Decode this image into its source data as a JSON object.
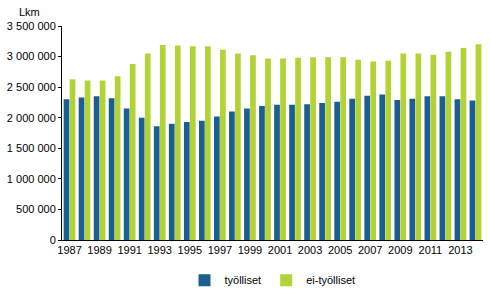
{
  "chart_data": {
    "type": "bar",
    "y_label": "Lkm",
    "categories": [
      "1987",
      null,
      "1989",
      null,
      "1991",
      null,
      "1993",
      null,
      "1995",
      null,
      "1997",
      null,
      "1999",
      null,
      "2001",
      null,
      "2003",
      null,
      "2005",
      null,
      "2007",
      null,
      "2009",
      null,
      "2011",
      null,
      "2013",
      null
    ],
    "series": [
      {
        "name": "työlliset",
        "color": "#1b5e8f",
        "values": [
          2300000,
          2330000,
          2350000,
          2320000,
          2150000,
          2000000,
          1860000,
          1900000,
          1930000,
          1950000,
          2020000,
          2100000,
          2150000,
          2190000,
          2210000,
          2210000,
          2220000,
          2240000,
          2260000,
          2310000,
          2360000,
          2380000,
          2290000,
          2310000,
          2350000,
          2350000,
          2300000,
          2280000
        ]
      },
      {
        "name": "ei-työlliset",
        "color": "#b3d235",
        "values": [
          2630000,
          2610000,
          2610000,
          2680000,
          2880000,
          3050000,
          3190000,
          3180000,
          3170000,
          3170000,
          3110000,
          3050000,
          3020000,
          2970000,
          2970000,
          2980000,
          2990000,
          2990000,
          2990000,
          2950000,
          2920000,
          2930000,
          3050000,
          3050000,
          3030000,
          3080000,
          3140000,
          3200000
        ]
      }
    ],
    "ylim": [
      0,
      3500000
    ],
    "yticks": [
      0,
      {
        "value": 500000,
        "label": "500 000"
      },
      {
        "value": 1000000,
        "label": "1 000 000"
      },
      {
        "value": 1500000,
        "label": "1 500 000"
      },
      {
        "value": 2000000,
        "label": "2 000 000"
      },
      {
        "value": 2500000,
        "label": "2 500 000"
      },
      {
        "value": 3000000,
        "label": "3 000 000"
      },
      {
        "value": 3500000,
        "label": "3 500 000"
      }
    ],
    "grid": false,
    "legend": "bottom"
  }
}
